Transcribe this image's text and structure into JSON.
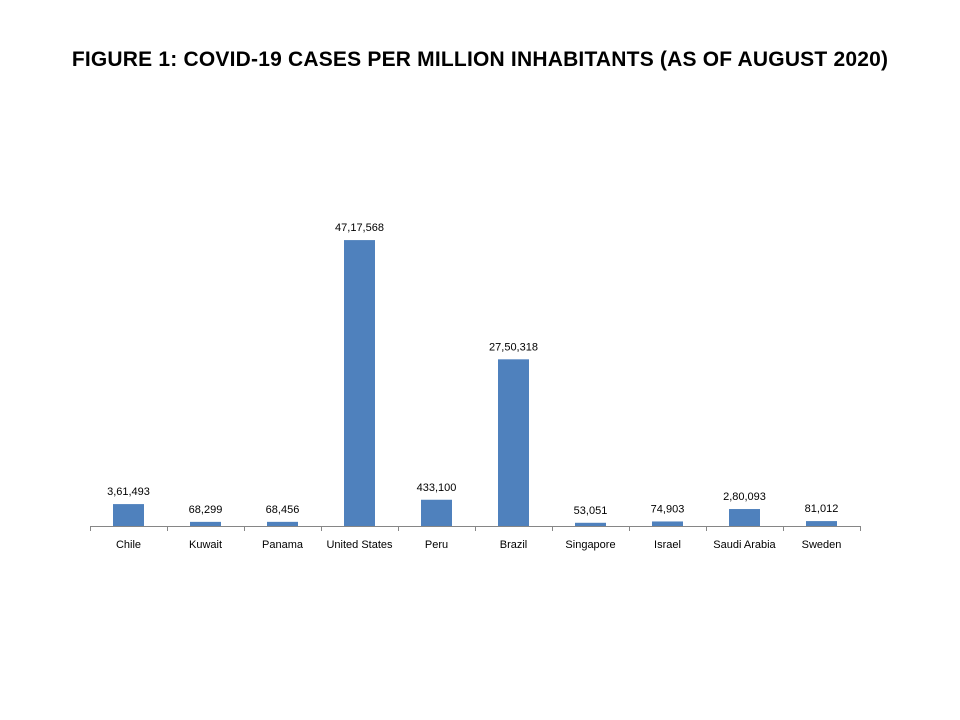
{
  "chart_data": {
    "type": "bar",
    "title": "FIGURE 1:  COVID-19 CASES PER MILLION INHABITANTS (AS OF AUGUST 2020)",
    "xlabel": "",
    "ylabel": "",
    "ylim": [
      0,
      4950000
    ],
    "grid": false,
    "legend": "none",
    "bar_color": "#4F81BD",
    "categories": [
      "Chile",
      "Kuwait",
      "Panama",
      "United States",
      "Peru",
      "Brazil",
      "Singapore",
      "Israel",
      "Saudi Arabia",
      "Sweden"
    ],
    "values": [
      361493,
      68299,
      68456,
      4717568,
      433100,
      2750318,
      53051,
      74903,
      280093,
      81012
    ],
    "data_labels": [
      "3,61,493",
      "68,299",
      "68,456",
      "47,17,568",
      "433,100",
      "27,50,318",
      "53,051",
      "74,903",
      "2,80,093",
      "81,012"
    ]
  }
}
